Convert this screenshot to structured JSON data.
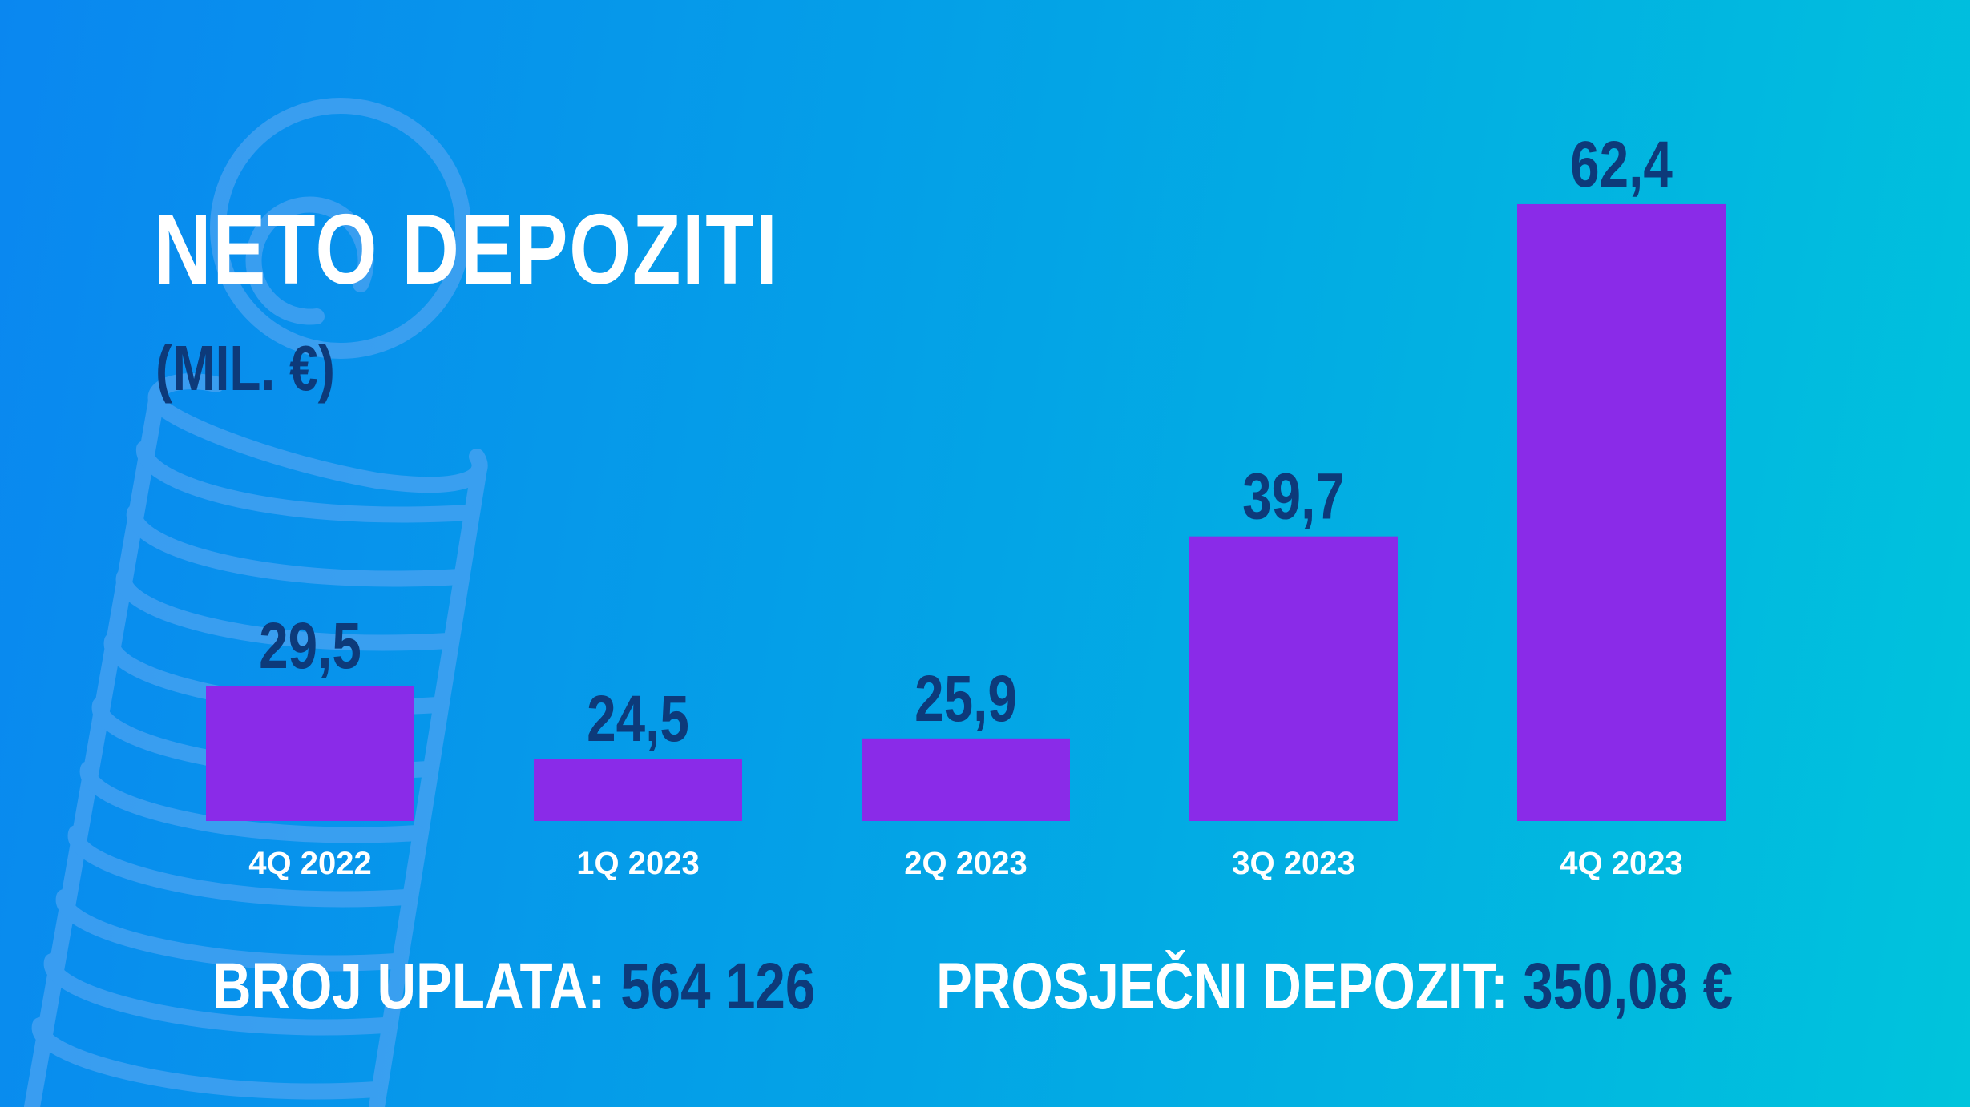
{
  "title": "NETO DEPOZITI",
  "subtitle": "(MIL. €)",
  "chart_data": {
    "type": "bar",
    "title": "NETO DEPOZITI",
    "subtitle": "(MIL. €)",
    "categories": [
      "4Q 2022",
      "1Q 2023",
      "2Q 2023",
      "3Q 2023",
      "4Q 2023"
    ],
    "values": [
      29.5,
      24.5,
      25.9,
      39.7,
      62.4
    ],
    "value_labels": [
      "29,5",
      "24,5",
      "25,9",
      "39,7",
      "62,4"
    ],
    "xlabel": "",
    "ylabel": "",
    "grid": false,
    "bar_color": "#8a2be8",
    "label_color": "#0d3a7a",
    "category_color": "#ffffff"
  },
  "stats": {
    "payments_label": "BROJ UPLATA:",
    "payments_value": "564 126",
    "avg_label": "PROSJEČNI DEPOZIT:",
    "avg_value": "350,08 €"
  },
  "decoration": {
    "icon": "coin-stack-icon",
    "color": "#4da6f0"
  }
}
